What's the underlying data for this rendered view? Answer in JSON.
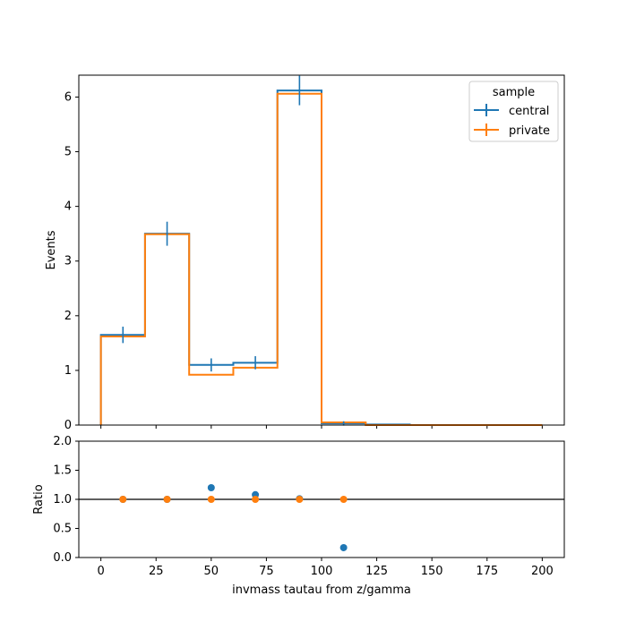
{
  "chart_data": [
    {
      "type": "histogram",
      "panel": "main",
      "xlabel": "",
      "ylabel": "Events",
      "xlim": [
        -10,
        210
      ],
      "ylim": [
        0,
        6.4
      ],
      "yticks": [
        0,
        1,
        2,
        3,
        4,
        5,
        6
      ],
      "xticks": [
        0,
        25,
        50,
        75,
        100,
        125,
        150,
        175,
        200
      ],
      "bin_edges": [
        0,
        20,
        40,
        60,
        80,
        100,
        120,
        140,
        160,
        180,
        200
      ],
      "legend": {
        "title": "sample",
        "placement": "upper-right"
      },
      "series": [
        {
          "name": "central",
          "color": "#1f77b4",
          "values": [
            1.65,
            3.5,
            1.1,
            1.14,
            6.12,
            0.03,
            0.01,
            0.0,
            0.0,
            0.0
          ],
          "errors": [
            0.15,
            0.22,
            0.12,
            0.12,
            0.27,
            0.04,
            0.0,
            0.0,
            0.0,
            0.0
          ]
        },
        {
          "name": "private",
          "color": "#ff7f0e",
          "values": [
            1.62,
            3.49,
            0.92,
            1.05,
            6.06,
            0.05,
            0.0,
            0.0,
            0.0,
            0.0
          ],
          "errors": []
        }
      ]
    },
    {
      "type": "scatter",
      "panel": "ratio",
      "xlabel": "invmass tautau from z/gamma",
      "ylabel": "Ratio",
      "xlim": [
        -10,
        210
      ],
      "ylim": [
        0,
        2.0
      ],
      "yticks": [
        0.0,
        0.5,
        1.0,
        1.5,
        2.0
      ],
      "xticks": [
        0,
        25,
        50,
        75,
        100,
        125,
        150,
        175,
        200
      ],
      "reference_line": 1.0,
      "series": [
        {
          "name": "central",
          "color": "#1f77b4",
          "x": [
            10,
            30,
            50,
            70,
            90,
            110
          ],
          "y": [
            1.0,
            1.0,
            1.2,
            1.08,
            1.01,
            0.17
          ]
        },
        {
          "name": "private",
          "color": "#ff7f0e",
          "x": [
            10,
            30,
            50,
            70,
            90,
            110
          ],
          "y": [
            1.0,
            1.0,
            1.0,
            1.0,
            1.0,
            1.0
          ]
        }
      ]
    }
  ]
}
